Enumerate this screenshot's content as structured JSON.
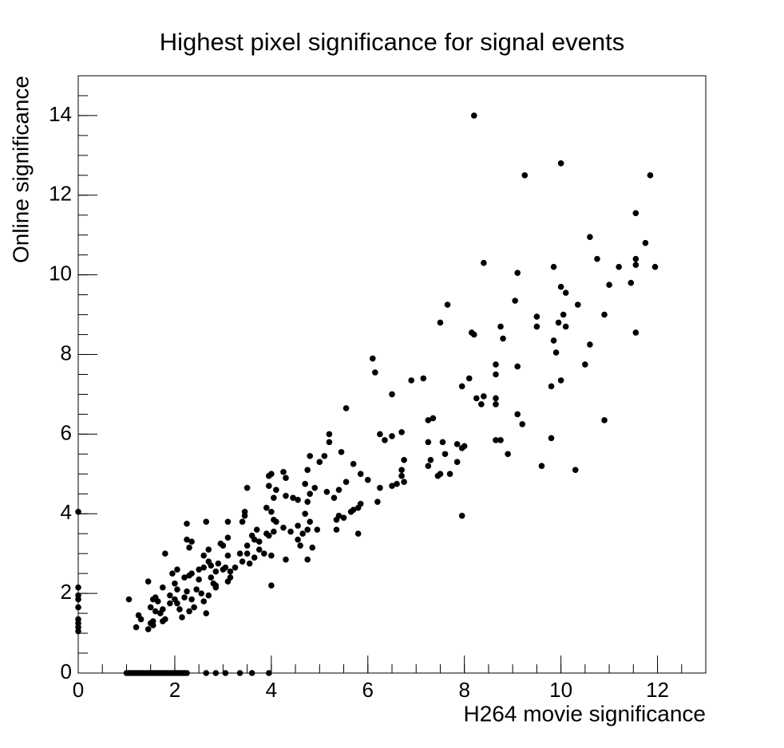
{
  "chart_data": {
    "type": "scatter",
    "title": "Highest pixel significance for signal events",
    "x_label": "H264 movie significance",
    "y_label": "Online significance",
    "color": "#000000",
    "xlim": [
      0,
      13
    ],
    "xticks": [
      0,
      2,
      4,
      6,
      8,
      10,
      12
    ],
    "ylim": [
      0,
      15
    ],
    "yticks": [
      0,
      2,
      4,
      6,
      8,
      10,
      12,
      14
    ],
    "x": [
      0,
      0,
      0,
      0,
      0,
      0,
      0,
      0,
      0,
      1.0,
      1.05,
      1.1,
      1.15,
      1.2,
      1.25,
      1.3,
      1.35,
      1.4,
      1.45,
      1.5,
      1.55,
      1.6,
      1.65,
      1.7,
      1.75,
      1.8,
      1.85,
      1.9,
      1.95,
      2.0,
      2.05,
      2.1,
      2.15,
      2.2,
      2.25,
      2.65,
      2.85,
      3.05,
      3.35,
      3.6,
      3.95,
      8.2,
      10,
      9.25,
      11.85,
      11.55,
      10.6,
      11.75,
      10.75,
      11.55,
      11.55,
      11.2,
      11.95,
      9.85,
      8.4,
      9.1,
      11,
      11.45,
      10,
      10.1,
      9.05,
      10.35,
      7.65,
      9.5,
      10.9,
      10.05,
      9.95,
      10.1,
      9.5,
      8.75,
      7.5,
      8.15,
      8.2,
      11.55,
      8.8,
      9.85,
      10.6,
      9.9,
      6.1,
      8.65,
      10.5,
      9.1,
      6.15,
      8.65,
      8.1,
      7.15,
      6.9,
      10,
      9.8,
      7.95,
      6.5,
      8.4,
      8.25,
      8.65,
      8.35,
      8.65,
      5.55,
      9.1,
      7.35,
      7.25,
      10.9,
      9.2,
      6.7,
      5.2,
      6.25,
      6.5,
      9.8,
      8.65,
      8.75,
      6.35,
      5.2,
      7.25,
      7.55,
      7.85,
      8,
      7.95,
      5.45,
      7.6,
      8.9,
      5.1,
      4.8,
      7.3,
      6.75,
      7.85,
      5,
      7.25,
      9.6,
      5.7,
      6.7,
      10.3,
      4.75,
      4.25,
      4,
      5.85,
      7.5,
      7.7,
      6.7,
      7.45,
      3.95,
      4.3,
      5.55,
      4.7,
      6,
      6.75,
      6.6,
      3.95,
      3.5,
      4.9,
      6.25,
      5.4,
      4.8,
      5.15,
      4.1,
      6.5,
      4.3,
      4.45,
      5.3,
      4.05,
      5.85,
      6.2,
      4.55,
      4.75,
      3.9,
      5.8,
      5.7,
      5.65,
      3.45,
      4.7,
      5.4,
      4,
      3.45,
      5.5,
      7.95,
      4.05,
      5.35,
      4.8,
      4.1,
      3.4,
      2.25,
      2.65,
      3.1,
      4.55,
      4.75,
      4.95,
      4.25,
      3.7,
      3.9,
      4.05,
      5.35,
      5.8,
      4.4,
      3.6,
      4.65,
      3.95,
      4.55,
      3.65,
      3.1,
      3.75,
      2.25,
      2.35,
      4.6,
      3.5,
      2.95,
      3,
      2.3,
      4.85,
      2.7,
      3.75,
      3.5,
      1.8,
      3.35,
      3.85,
      4,
      2.6,
      3.1,
      3.65,
      4.3,
      4.75,
      2.7,
      3.4,
      3.55,
      2.9,
      2.75,
      3.05,
      2.6,
      3.25,
      3,
      2.05,
      2.5,
      3.15,
      2.85,
      1.95,
      2.35,
      2.3,
      2.2,
      2.75,
      3.15,
      2.5,
      1.45,
      2,
      2.8,
      3.1,
      2.85,
      4,
      2.45,
      1.75,
      2.05,
      2.85,
      2.25,
      2.55,
      2.7,
      1.9,
      2.2,
      2.35,
      1.6,
      2,
      1.55,
      1.65,
      1.05,
      1.9,
      2.05,
      2.6,
      1.5,
      2.4,
      2.1,
      1.75,
      1.3,
      1.25,
      1.2,
      1.55,
      1.45,
      1.7,
      1.6,
      2.65,
      2.3,
      1.55,
      1.75,
      1.8,
      2.15,
      1.5
    ],
    "values": [
      4.05,
      2.15,
      1.95,
      1.85,
      1.65,
      1.35,
      1.25,
      1.15,
      1.05,
      0,
      0,
      0,
      0,
      0,
      0,
      0,
      0,
      0,
      0,
      0,
      0,
      0,
      0,
      0,
      0,
      0,
      0,
      0,
      0,
      0,
      0,
      0,
      0,
      0,
      0,
      0,
      0,
      0,
      0,
      0,
      0,
      14,
      12.8,
      12.5,
      12.5,
      11.55,
      10.95,
      10.8,
      10.4,
      10.4,
      10.25,
      10.2,
      10.2,
      10.2,
      10.3,
      10.05,
      9.75,
      9.8,
      9.7,
      9.55,
      9.35,
      9.25,
      9.25,
      8.95,
      9,
      9,
      8.8,
      8.7,
      8.7,
      8.7,
      8.8,
      8.55,
      8.5,
      8.55,
      8.4,
      8.35,
      8.25,
      8.05,
      7.9,
      7.75,
      7.75,
      7.7,
      7.55,
      7.5,
      7.4,
      7.4,
      7.35,
      7.35,
      7.2,
      7.2,
      7,
      6.95,
      6.9,
      6.9,
      6.75,
      6.75,
      6.65,
      6.5,
      6.4,
      6.35,
      6.35,
      6.25,
      6.05,
      6,
      6,
      5.95,
      5.9,
      5.85,
      5.85,
      5.85,
      5.8,
      5.8,
      5.8,
      5.75,
      5.7,
      5.65,
      5.55,
      5.5,
      5.5,
      5.45,
      5.45,
      5.35,
      5.35,
      5.3,
      5.3,
      5.2,
      5.2,
      5.25,
      5.1,
      5.1,
      5.1,
      5.05,
      5,
      5,
      5,
      5,
      4.95,
      4.95,
      4.95,
      4.9,
      4.8,
      4.75,
      4.85,
      4.8,
      4.75,
      4.7,
      4.65,
      4.65,
      4.65,
      4.6,
      4.5,
      4.55,
      4.6,
      4.7,
      4.45,
      4.4,
      4.4,
      4.4,
      4.25,
      4.3,
      4.35,
      4.3,
      4.15,
      4.15,
      4.1,
      4.05,
      4.05,
      4,
      3.95,
      4.05,
      3.95,
      3.9,
      3.95,
      3.85,
      3.85,
      3.8,
      3.8,
      3.8,
      3.75,
      3.8,
      3.8,
      3.7,
      3.6,
      3.6,
      3.65,
      3.6,
      3.5,
      3.55,
      3.6,
      3.5,
      3.55,
      3.45,
      3.5,
      3.45,
      3.35,
      3.35,
      3.4,
      3.3,
      3.35,
      3.3,
      3.2,
      3.2,
      3.25,
      3.2,
      3.15,
      3.15,
      3.1,
      3.1,
      3,
      3,
      3,
      3,
      2.95,
      2.95,
      2.95,
      2.9,
      2.85,
      2.85,
      2.8,
      2.8,
      2.75,
      2.75,
      2.7,
      2.65,
      2.65,
      2.65,
      2.6,
      2.6,
      2.6,
      2.55,
      2.55,
      2.5,
      2.5,
      2.45,
      2.4,
      2.4,
      2.4,
      2.35,
      2.3,
      2.25,
      2.25,
      2.3,
      2.15,
      2.2,
      2.1,
      2.15,
      2.1,
      2.2,
      2.05,
      2,
      1.95,
      1.95,
      1.9,
      1.85,
      1.9,
      1.85,
      1.85,
      1.8,
      1.85,
      1.75,
      1.75,
      1.8,
      1.65,
      1.65,
      1.6,
      1.6,
      1.35,
      1.45,
      1.15,
      1.3,
      1.1,
      1.5,
      1.55,
      1.5,
      1.55,
      1.2,
      1.3,
      1.35,
      1.4,
      1.25
    ]
  }
}
